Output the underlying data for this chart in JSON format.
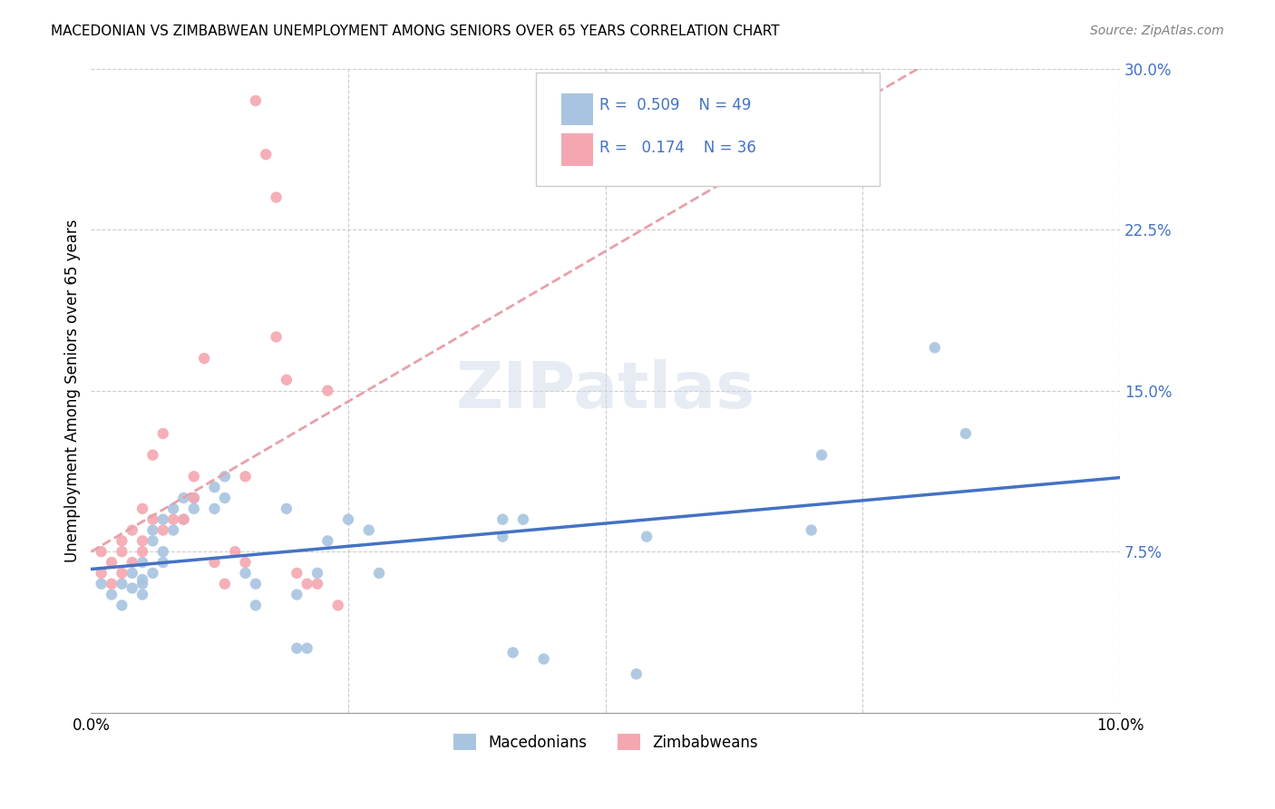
{
  "title": "MACEDONIAN VS ZIMBABWEAN UNEMPLOYMENT AMONG SENIORS OVER 65 YEARS CORRELATION CHART",
  "source": "Source: ZipAtlas.com",
  "xlabel_bottom": [
    "0.0%",
    "10.0%"
  ],
  "ylabel_right": [
    "7.5%",
    "15.0%",
    "22.5%",
    "30.0%"
  ],
  "ylabel_label": "Unemployment Among Seniors over 65 years",
  "mac_R": 0.509,
  "mac_N": 49,
  "zim_R": 0.174,
  "zim_N": 36,
  "mac_color": "#a8c4e0",
  "zim_color": "#f4a7b0",
  "mac_line_color": "#4472c4",
  "zim_line_color": "#e8a0aa",
  "watermark": "ZIPatlas",
  "xlim": [
    0.0,
    0.1
  ],
  "ylim": [
    0.0,
    0.3
  ],
  "mac_x": [
    0.001,
    0.002,
    0.003,
    0.003,
    0.004,
    0.004,
    0.005,
    0.005,
    0.005,
    0.005,
    0.006,
    0.006,
    0.006,
    0.007,
    0.007,
    0.007,
    0.008,
    0.008,
    0.009,
    0.009,
    0.01,
    0.01,
    0.012,
    0.012,
    0.013,
    0.013,
    0.015,
    0.016,
    0.016,
    0.019,
    0.02,
    0.02,
    0.021,
    0.022,
    0.023,
    0.025,
    0.027,
    0.028,
    0.04,
    0.04,
    0.041,
    0.042,
    0.044,
    0.053,
    0.054,
    0.07,
    0.071,
    0.082,
    0.085
  ],
  "mac_y": [
    0.06,
    0.055,
    0.06,
    0.05,
    0.058,
    0.065,
    0.06,
    0.062,
    0.055,
    0.07,
    0.085,
    0.08,
    0.065,
    0.075,
    0.07,
    0.09,
    0.095,
    0.085,
    0.09,
    0.1,
    0.095,
    0.1,
    0.095,
    0.105,
    0.11,
    0.1,
    0.065,
    0.05,
    0.06,
    0.095,
    0.055,
    0.03,
    0.03,
    0.065,
    0.08,
    0.09,
    0.085,
    0.065,
    0.082,
    0.09,
    0.028,
    0.09,
    0.025,
    0.018,
    0.082,
    0.085,
    0.12,
    0.17,
    0.13
  ],
  "zim_x": [
    0.001,
    0.001,
    0.002,
    0.002,
    0.003,
    0.003,
    0.003,
    0.004,
    0.004,
    0.005,
    0.005,
    0.005,
    0.006,
    0.006,
    0.007,
    0.007,
    0.008,
    0.009,
    0.01,
    0.01,
    0.011,
    0.012,
    0.013,
    0.014,
    0.015,
    0.015,
    0.016,
    0.017,
    0.018,
    0.018,
    0.019,
    0.02,
    0.021,
    0.022,
    0.023,
    0.024
  ],
  "zim_y": [
    0.065,
    0.075,
    0.06,
    0.07,
    0.065,
    0.08,
    0.075,
    0.07,
    0.085,
    0.095,
    0.075,
    0.08,
    0.09,
    0.12,
    0.13,
    0.085,
    0.09,
    0.09,
    0.11,
    0.1,
    0.165,
    0.07,
    0.06,
    0.075,
    0.11,
    0.07,
    0.285,
    0.26,
    0.24,
    0.175,
    0.155,
    0.065,
    0.06,
    0.06,
    0.15,
    0.05
  ]
}
